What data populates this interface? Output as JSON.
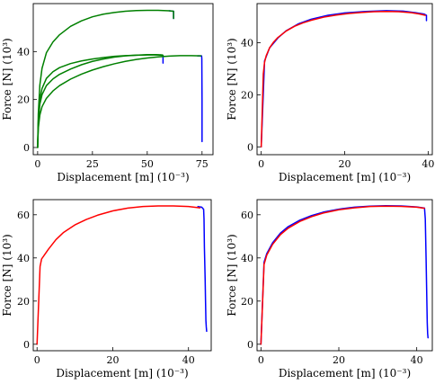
{
  "chart_data": [
    {
      "type": "line",
      "xlabel": "Displacement [m] (10⁻³)",
      "ylabel": "Force [N] (10³)",
      "xlim": [
        -2,
        80
      ],
      "ylim": [
        -3,
        60
      ],
      "xticks": [
        0,
        25,
        50,
        75
      ],
      "yticks": [
        0,
        20,
        40
      ],
      "grid": false,
      "series": [
        {
          "color": "#0000ff",
          "x": [
            60.0,
            62.0,
            62.0
          ],
          "y": [
            57.0,
            56.8,
            53.8
          ]
        },
        {
          "color": "#0000ff",
          "x": [
            56.0,
            57.2,
            57.2
          ],
          "y": [
            38.6,
            38.4,
            35.2
          ]
        },
        {
          "color": "#0000ff",
          "x": [
            73.0,
            74.8,
            74.9,
            75.0,
            75.0
          ],
          "y": [
            38.2,
            38.2,
            37.0,
            20.0,
            2.5
          ]
        },
        {
          "color": "#008000",
          "x": [
            0,
            0.3,
            1.0,
            2.0,
            4.0,
            7.0,
            10.0,
            15.0,
            20.0,
            25.0,
            30.0,
            35.0,
            40.0,
            45.0,
            50.0,
            55.0,
            60.0,
            62.0,
            62.0
          ],
          "y": [
            0,
            14.0,
            26.0,
            33.0,
            39.5,
            44.0,
            47.0,
            50.5,
            52.8,
            54.5,
            55.6,
            56.3,
            56.8,
            57.1,
            57.2,
            57.2,
            57.0,
            56.8,
            53.8
          ]
        },
        {
          "color": "#008000",
          "x": [
            0,
            0.3,
            1.0,
            2.0,
            4.0,
            7.0,
            10.0,
            15.0,
            20.0,
            25.0,
            30.0,
            35.0,
            40.0,
            45.0,
            50.0,
            54.0,
            57.0
          ],
          "y": [
            0,
            10.0,
            18.0,
            22.0,
            25.8,
            28.6,
            30.5,
            32.7,
            34.5,
            35.9,
            36.9,
            37.7,
            38.2,
            38.5,
            38.7,
            38.7,
            38.6
          ]
        },
        {
          "color": "#008000",
          "x": [
            0,
            0.3,
            1.0,
            2.0,
            4.0,
            7.0,
            10.0,
            15.0,
            20.0,
            25.0,
            30.0,
            35.0,
            40.0,
            45.0,
            50.0,
            55.0,
            60.0,
            65.0,
            70.0,
            74.5
          ],
          "y": [
            0,
            8.0,
            13.5,
            17.0,
            20.5,
            23.6,
            25.8,
            28.5,
            30.6,
            32.3,
            33.7,
            34.9,
            35.9,
            36.7,
            37.3,
            37.8,
            38.1,
            38.3,
            38.3,
            38.2
          ]
        },
        {
          "color": "#008000",
          "x": [
            0,
            0.3,
            1.0,
            2.0,
            4.0,
            7.0,
            10.0,
            15.0,
            20.0,
            25.0,
            30.0,
            35.0,
            40.0,
            45.0,
            50.0,
            55.0,
            57.2
          ],
          "y": [
            0,
            11.0,
            20.0,
            24.6,
            28.8,
            31.6,
            33.3,
            35.0,
            36.1,
            36.9,
            37.5,
            38.0,
            38.3,
            38.5,
            38.6,
            38.6,
            38.4
          ]
        }
      ]
    },
    {
      "type": "line",
      "xlabel": "Displacement [m] (10⁻³)",
      "ylabel": "Force [N] (10³)",
      "xlim": [
        -1,
        41
      ],
      "ylim": [
        -3,
        55
      ],
      "xticks": [
        0,
        20,
        40
      ],
      "yticks": [
        0,
        20,
        40
      ],
      "grid": false,
      "series": [
        {
          "color": "#0000ff",
          "x": [
            0,
            0.8,
            2.0,
            4.0,
            6.0,
            9.0,
            12.0,
            16.0,
            20.0,
            25.0,
            30.0,
            34.0,
            37.0,
            39.0,
            39.6,
            39.6
          ],
          "y": [
            0,
            33.0,
            38.0,
            41.8,
            44.6,
            47.3,
            49.0,
            50.5,
            51.4,
            52.0,
            52.3,
            52.1,
            51.5,
            51.0,
            50.5,
            48.5
          ]
        },
        {
          "color": "#ff0000",
          "x": [
            0,
            0.5,
            0.8,
            1.2,
            2.0,
            3.0,
            4.0,
            6.0,
            8.0,
            10.0,
            12.0,
            15.0,
            18.0,
            21.0,
            24.0,
            27.0,
            30.0,
            33.0,
            36.0,
            38.0,
            39.3
          ],
          "y": [
            0,
            28.0,
            32.5,
            35.0,
            38.0,
            40.3,
            42.0,
            44.5,
            46.3,
            47.6,
            48.6,
            49.8,
            50.6,
            51.2,
            51.6,
            51.9,
            52.0,
            51.9,
            51.5,
            51.0,
            50.5
          ]
        }
      ]
    },
    {
      "type": "line",
      "xlabel": "Displacement [m] (10⁻³)",
      "ylabel": "Force [N] (10³)",
      "xlim": [
        -1,
        46
      ],
      "ylim": [
        -3,
        67
      ],
      "xticks": [
        0,
        20,
        40
      ],
      "yticks": [
        0,
        20,
        40,
        60
      ],
      "grid": false,
      "series": [
        {
          "color": "#0000ff",
          "x": [
            42.5,
            43.5,
            44.0,
            44.1,
            44.2,
            44.4,
            44.5,
            44.6,
            44.7,
            44.8
          ],
          "y": [
            63.8,
            63.5,
            62.5,
            58.0,
            45.0,
            30.0,
            20.0,
            11.0,
            8.0,
            6.0
          ]
        },
        {
          "color": "#ff0000",
          "x": [
            0,
            0.8,
            1.2,
            2.0,
            3.0,
            5.0,
            7.0,
            10.0,
            13.0,
            16.0,
            20.0,
            24.0,
            28.0,
            32.0,
            36.0,
            40.0,
            43.0
          ],
          "y": [
            0,
            36.0,
            39.5,
            41.5,
            44.0,
            48.5,
            51.8,
            55.3,
            57.8,
            59.8,
            61.8,
            63.1,
            63.8,
            64.1,
            64.1,
            63.8,
            63.2
          ]
        }
      ]
    },
    {
      "type": "line",
      "xlabel": "Displacement [m] (10⁻³)",
      "ylabel": "Force [N] (10³)",
      "xlim": [
        -1,
        44
      ],
      "ylim": [
        -3,
        67
      ],
      "xticks": [
        0,
        20,
        40
      ],
      "yticks": [
        0,
        20,
        40,
        60
      ],
      "grid": false,
      "series": [
        {
          "color": "#0000ff",
          "x": [
            0,
            0.8,
            1.5,
            3.0,
            5.0,
            7.0,
            10.0,
            13.0,
            16.0,
            20.0,
            24.0,
            28.0,
            32.0,
            36.0,
            40.0,
            42.0,
            42.2,
            42.4,
            42.6,
            42.7,
            42.8,
            42.9
          ],
          "y": [
            0,
            38.0,
            42.0,
            47.0,
            51.5,
            54.5,
            57.5,
            59.6,
            61.2,
            62.6,
            63.5,
            64.0,
            64.2,
            64.1,
            63.6,
            63.1,
            58.0,
            40.0,
            20.0,
            10.0,
            5.0,
            3.0
          ]
        },
        {
          "color": "#ff0000",
          "x": [
            0,
            0.8,
            1.5,
            3.0,
            5.0,
            7.0,
            10.0,
            13.0,
            16.0,
            20.0,
            24.0,
            28.0,
            32.0,
            36.0,
            40.0,
            42.0
          ],
          "y": [
            0,
            37.0,
            41.3,
            46.3,
            50.8,
            53.8,
            56.9,
            59.1,
            60.8,
            62.3,
            63.2,
            63.8,
            64.0,
            63.9,
            63.5,
            63.0
          ]
        }
      ]
    }
  ]
}
